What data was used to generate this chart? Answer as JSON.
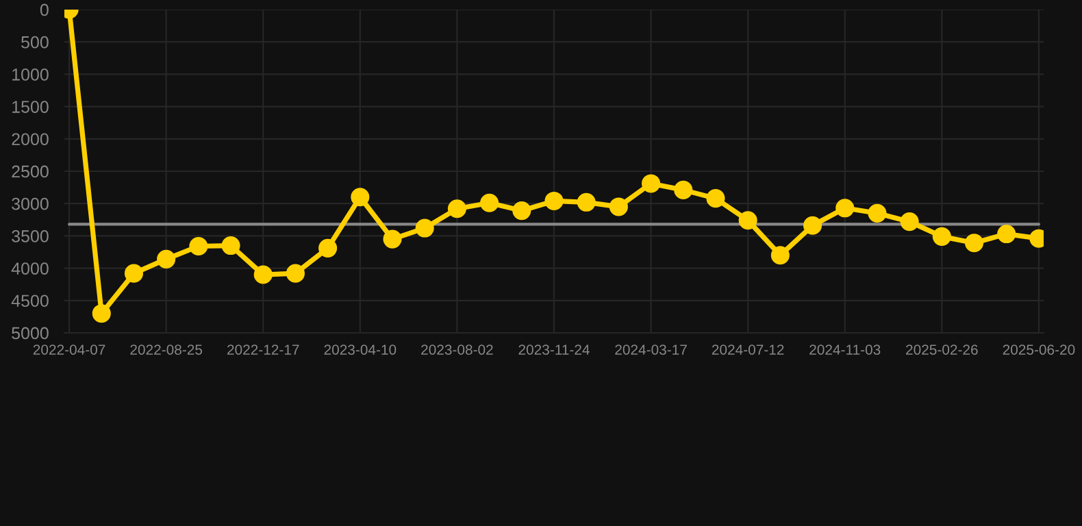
{
  "chart_data": {
    "type": "line",
    "categories": [
      "2022-04-07",
      null,
      null,
      "2022-08-25",
      null,
      null,
      "2022-12-17",
      null,
      null,
      "2023-04-10",
      null,
      null,
      "2023-08-02",
      null,
      null,
      "2023-11-24",
      null,
      null,
      "2024-03-17",
      null,
      null,
      "2024-07-12",
      null,
      null,
      "2024-11-03",
      null,
      null,
      "2025-02-26",
      null,
      null,
      "2025-06-20"
    ],
    "series": [
      {
        "color": "#ffd000",
        "values": [
          0,
          4700,
          4080,
          3860,
          3660,
          3650,
          4100,
          4080,
          3690,
          2900,
          3550,
          3380,
          3080,
          2990,
          3110,
          2960,
          2980,
          3050,
          2690,
          2790,
          2920,
          3260,
          3800,
          3340,
          3070,
          3150,
          3280,
          3510,
          3610,
          3470,
          3540
        ]
      }
    ],
    "ref_lines": [
      {
        "axis": "y",
        "value": 3320,
        "color": "#888888",
        "line_style": "solid"
      }
    ],
    "ylim": [
      5000,
      0
    ],
    "yticks": [
      0,
      500,
      1000,
      1500,
      2000,
      2500,
      3000,
      3500,
      4000,
      4500,
      5000
    ],
    "grid": true,
    "marker": "circle",
    "line_style": "solid"
  }
}
